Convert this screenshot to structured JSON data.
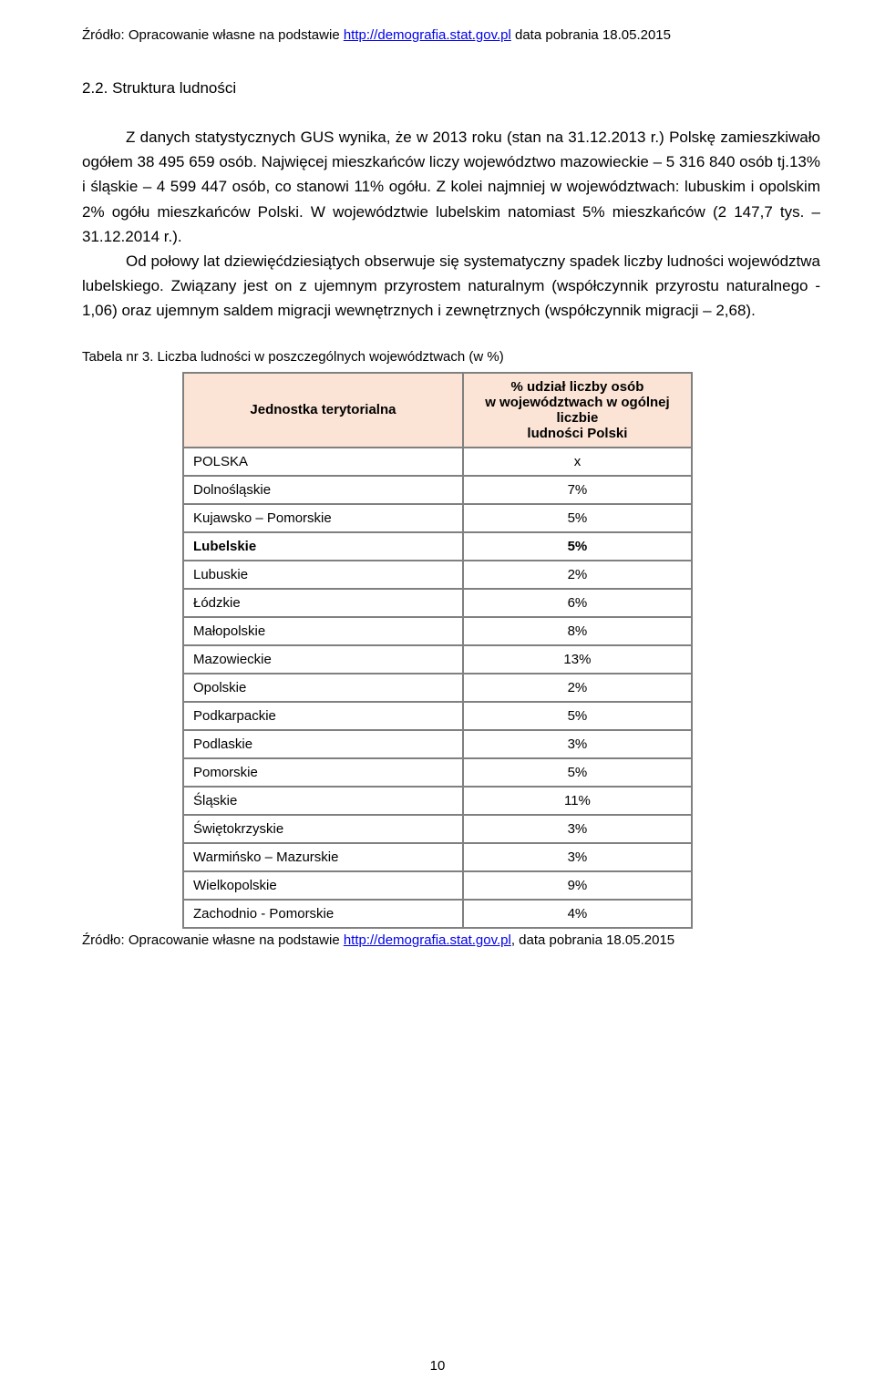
{
  "source_top": {
    "prefix": "Źródło: Opracowanie własne na podstawie ",
    "link_text": "http://demografia.stat.gov.pl",
    "suffix": " data pobrania 18.05.2015"
  },
  "section_title": "2.2. Struktura ludności",
  "paragraph1": {
    "p1": "Z danych statystycznych GUS wynika, że w 2013 roku (stan na 31.12.2013 r.) Polskę zamieszkiwało ogółem 38 495 659 osób. Najwięcej mieszkańców liczy województwo mazowieckie – 5 316 840 osób tj.13% i śląskie – 4 599 447 osób, co stanowi 11% ogółu. Z kolei najmniej w województwach: lubuskim i opolskim 2% ogółu mieszkańców Polski. W województwie lubelskim natomiast 5% mieszkańców (2 147,7 tys. – 31.12.2014 r.).",
    "p2": "Od połowy lat dziewięćdziesiątych obserwuje się systematyczny spadek liczby ludności województwa lubelskiego. Związany jest on z ujemnym przyrostem naturalnym (współczynnik przyrostu naturalnego - 1,06) oraz ujemnym saldem migracji wewnętrznych i zewnętrznych (współczynnik migracji – 2,68)."
  },
  "table_caption": "Tabela nr 3. Liczba ludności w poszczególnych województwach (w %)",
  "table": {
    "header_left": "Jednostka terytorialna",
    "header_right_l1": "% udział liczby osób",
    "header_right_l2": "w województwach w ogólnej liczbie",
    "header_right_l3": "ludności Polski",
    "header_bg": "#fbe4d5",
    "header_font_weight": "bold",
    "border_color": "#808080",
    "rows": [
      {
        "name": "POLSKA",
        "value": "x",
        "bold": false
      },
      {
        "name": "Dolnośląskie",
        "value": "7%",
        "bold": false
      },
      {
        "name": "Kujawsko – Pomorskie",
        "value": "5%",
        "bold": false
      },
      {
        "name": "Lubelskie",
        "value": "5%",
        "bold": true
      },
      {
        "name": "Lubuskie",
        "value": "2%",
        "bold": false
      },
      {
        "name": "Łódzkie",
        "value": "6%",
        "bold": false
      },
      {
        "name": "Małopolskie",
        "value": "8%",
        "bold": false
      },
      {
        "name": "Mazowieckie",
        "value": "13%",
        "bold": false
      },
      {
        "name": "Opolskie",
        "value": "2%",
        "bold": false
      },
      {
        "name": "Podkarpackie",
        "value": "5%",
        "bold": false
      },
      {
        "name": "Podlaskie",
        "value": "3%",
        "bold": false
      },
      {
        "name": "Pomorskie",
        "value": "5%",
        "bold": false
      },
      {
        "name": "Śląskie",
        "value": "11%",
        "bold": false
      },
      {
        "name": "Świętokrzyskie",
        "value": "3%",
        "bold": false
      },
      {
        "name": "Warmińsko – Mazurskie",
        "value": "3%",
        "bold": false
      },
      {
        "name": "Wielkopolskie",
        "value": "9%",
        "bold": false
      },
      {
        "name": "Zachodnio - Pomorskie",
        "value": "4%",
        "bold": false
      }
    ]
  },
  "source_bottom": {
    "prefix": "Źródło: Opracowanie własne na podstawie ",
    "link_text": "http://demografia.stat.gov.pl",
    "suffix": ", data pobrania 18.05.2015"
  },
  "page_number": "10"
}
